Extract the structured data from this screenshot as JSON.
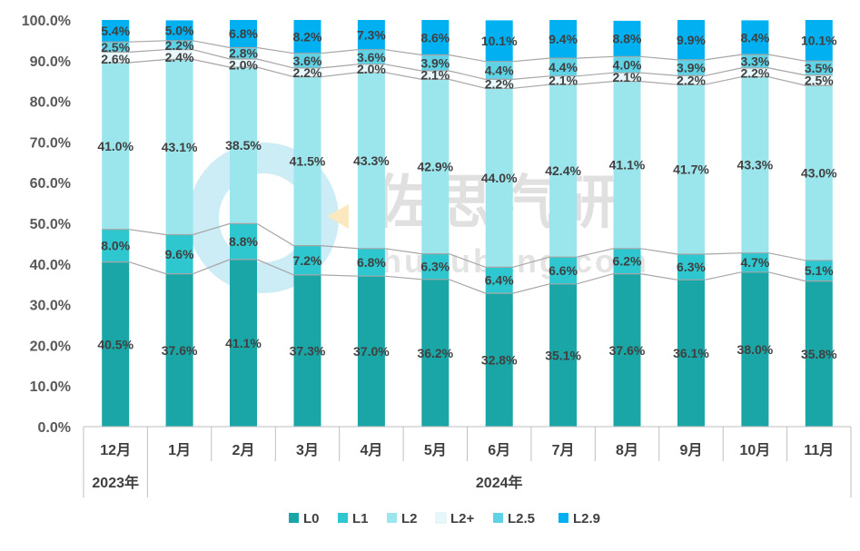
{
  "chart_data": {
    "type": "bar",
    "stacked": true,
    "categories": [
      "12月",
      "1月",
      "2月",
      "3月",
      "4月",
      "5月",
      "6月",
      "7月",
      "8月",
      "9月",
      "10月",
      "11月"
    ],
    "year_groups": [
      {
        "label": "2023年",
        "span": 1
      },
      {
        "label": "2024年",
        "span": 11
      }
    ],
    "ylim": [
      0,
      100
    ],
    "yticks": [
      "0.0%",
      "10.0%",
      "20.0%",
      "30.0%",
      "40.0%",
      "50.0%",
      "60.0%",
      "70.0%",
      "80.0%",
      "90.0%",
      "100.0%"
    ],
    "series": [
      {
        "name": "L0",
        "color": "#1aa6a6",
        "values": [
          40.5,
          37.6,
          41.1,
          37.3,
          37.0,
          36.2,
          32.8,
          35.1,
          37.6,
          36.1,
          38.0,
          35.8
        ]
      },
      {
        "name": "L1",
        "color": "#2ec7cf",
        "values": [
          8.0,
          9.6,
          8.8,
          7.2,
          6.8,
          6.3,
          6.4,
          6.6,
          6.2,
          6.3,
          4.7,
          5.1
        ]
      },
      {
        "name": "L2",
        "color": "#9ae6ec",
        "values": [
          41.0,
          43.1,
          38.5,
          41.5,
          43.3,
          42.9,
          44.0,
          42.4,
          41.1,
          41.7,
          43.3,
          43.0
        ]
      },
      {
        "name": "L2+",
        "color": "#e6f8fb",
        "values": [
          2.6,
          2.4,
          2.0,
          2.2,
          2.0,
          2.1,
          2.2,
          2.1,
          2.1,
          2.2,
          2.2,
          2.5
        ]
      },
      {
        "name": "L2.5",
        "color": "#5fd2e6",
        "values": [
          2.5,
          2.2,
          2.8,
          3.6,
          3.6,
          3.9,
          4.4,
          4.4,
          4.0,
          3.9,
          3.3,
          3.5
        ]
      },
      {
        "name": "L2.9",
        "color": "#00b0f0",
        "values": [
          5.4,
          5.0,
          6.8,
          8.2,
          7.3,
          8.6,
          10.1,
          9.4,
          8.8,
          9.9,
          8.4,
          10.1
        ]
      }
    ],
    "grid": false,
    "legend_position": "bottom-center"
  },
  "watermark": {
    "text": "佐思汽研",
    "sub": "huijubang.com"
  }
}
